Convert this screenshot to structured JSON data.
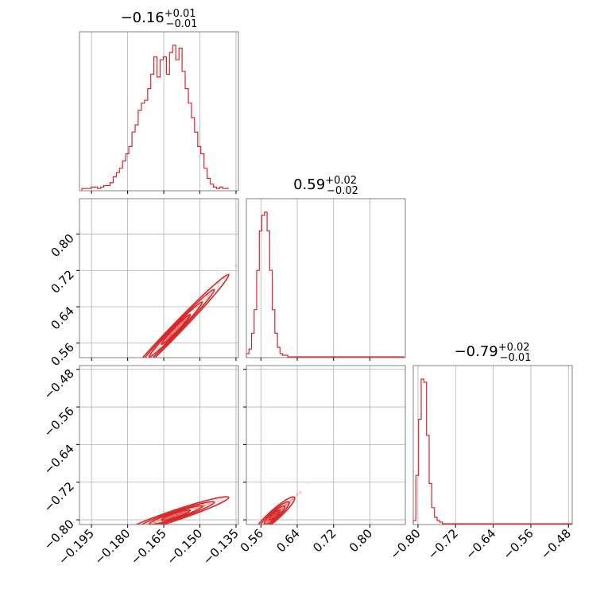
{
  "colors": {
    "accent": "#d62728",
    "grid": "#b0b0b0",
    "frame": "#808080"
  },
  "chart_data": {
    "type": "corner",
    "grid": true,
    "params": [
      {
        "median": "−0.16",
        "plus": "+0.01",
        "minus": "−0.01",
        "range": [
          -0.2,
          -0.134
        ],
        "ticks": [
          -0.195,
          -0.18,
          -0.165,
          -0.15,
          -0.135
        ],
        "tick_labels": [
          "−0.195",
          "−0.180",
          "−0.165",
          "−0.150",
          "−0.135"
        ]
      },
      {
        "median": "0.59",
        "plus": "+0.02",
        "minus": "−0.02",
        "range": [
          0.528,
          0.878
        ],
        "ticks": [
          0.56,
          0.64,
          0.72,
          0.8
        ],
        "tick_labels": [
          "0.56",
          "0.64",
          "0.72",
          "0.80"
        ]
      },
      {
        "median": "−0.79",
        "plus": "+0.02",
        "minus": "−0.01",
        "range": [
          -0.81,
          -0.472
        ],
        "ticks": [
          -0.8,
          -0.72,
          -0.64,
          -0.56,
          -0.48
        ],
        "tick_labels": [
          "−0.80",
          "−0.72",
          "−0.64",
          "−0.56",
          "−0.48"
        ]
      }
    ],
    "histograms": [
      {
        "param": 0,
        "bin_start": -0.199,
        "bin_width": 0.0013,
        "counts": [
          1,
          1,
          1,
          2,
          2,
          1,
          2,
          3,
          3,
          5,
          9,
          12,
          15,
          20,
          25,
          30,
          40,
          45,
          55,
          60,
          62,
          70,
          80,
          92,
          78,
          90,
          92,
          80,
          95,
          100,
          90,
          98,
          82,
          70,
          60,
          50,
          40,
          30,
          25,
          15,
          8,
          4,
          2,
          1,
          2,
          1,
          1
        ]
      },
      {
        "param": 1,
        "bin_start": 0.528,
        "bin_width": 0.0057,
        "counts": [
          2,
          5,
          15,
          30,
          55,
          80,
          90,
          92,
          80,
          55,
          30,
          15,
          6,
          2,
          1,
          1,
          0,
          0,
          0,
          0,
          0,
          0,
          0,
          0,
          0,
          0,
          0,
          0,
          0,
          0,
          0,
          0,
          0,
          0,
          0,
          0,
          0,
          0,
          0,
          0,
          0,
          0,
          0,
          0,
          0,
          0,
          0,
          0,
          0,
          0,
          0,
          0,
          0,
          0,
          0,
          0,
          0,
          0,
          0,
          0,
          0
        ]
      },
      {
        "param": 2,
        "bin_start": -0.81,
        "bin_width": 0.00563,
        "counts": [
          2,
          30,
          65,
          90,
          88,
          55,
          25,
          10,
          4,
          2,
          1,
          0,
          0,
          0,
          0,
          0,
          0,
          0,
          0,
          0,
          0,
          0,
          0,
          0,
          0,
          0,
          0,
          0,
          0,
          0,
          0,
          0,
          0,
          0,
          0,
          0,
          0,
          0,
          0,
          0,
          0,
          0,
          0,
          0,
          0,
          0,
          0,
          0,
          0,
          0,
          0,
          0,
          0,
          0,
          0,
          0,
          0,
          0,
          0,
          0
        ]
      }
    ],
    "scatters": [
      {
        "x_param": 0,
        "y_param": 1,
        "slope": 5.5,
        "x_center": -0.16,
        "y_center": 0.59,
        "x_sd": 0.01,
        "y_sd": 0.005
      },
      {
        "x_param": 0,
        "y_param": 2,
        "slope": 1.72,
        "x_center": -0.16,
        "y_center": -0.79,
        "x_sd": 0.01,
        "y_sd": 0.002
      },
      {
        "x_param": 1,
        "y_param": 2,
        "slope": 0.86,
        "x_center": 0.59,
        "y_center": -0.79,
        "x_sd": 0.02,
        "y_sd": 0.002
      }
    ]
  }
}
